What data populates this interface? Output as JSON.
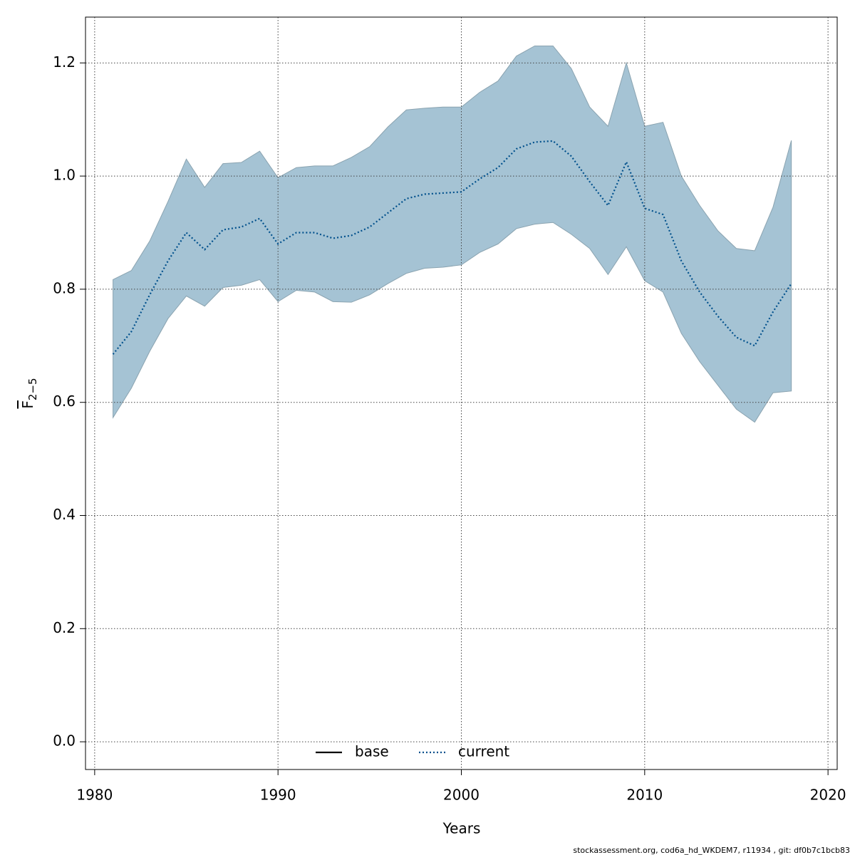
{
  "chart_data": {
    "type": "line",
    "xlabel": "Years",
    "ylabel": "F",
    "ylabel_sub": "2−5",
    "footer": "stockassessment.org, cod6a_hd_WKDEM7, r11934 , git: df0b7c1bcb83",
    "x": [
      1981,
      1982,
      1983,
      1984,
      1985,
      1986,
      1987,
      1988,
      1989,
      1990,
      1991,
      1992,
      1993,
      1994,
      1995,
      1996,
      1997,
      1998,
      1999,
      2000,
      2001,
      2002,
      2003,
      2004,
      2005,
      2006,
      2007,
      2008,
      2009,
      2010,
      2011,
      2012,
      2013,
      2014,
      2015,
      2016,
      2017,
      2018
    ],
    "series": [
      {
        "name": "current",
        "color": "#00508c",
        "dash": "dotted",
        "values": [
          0.685,
          0.725,
          0.79,
          0.85,
          0.9,
          0.87,
          0.905,
          0.91,
          0.925,
          0.88,
          0.9,
          0.9,
          0.89,
          0.895,
          0.91,
          0.935,
          0.96,
          0.968,
          0.97,
          0.972,
          0.995,
          1.015,
          1.048,
          1.06,
          1.062,
          1.035,
          0.99,
          0.948,
          1.025,
          0.943,
          0.932,
          0.85,
          0.795,
          0.752,
          0.715,
          0.7,
          0.76,
          0.81
        ]
      }
    ],
    "band": {
      "color": "#a5c3d4",
      "edge": "#8aa3b0",
      "upper": [
        0.817,
        0.833,
        0.885,
        0.955,
        1.03,
        0.98,
        1.022,
        1.024,
        1.044,
        0.997,
        1.015,
        1.018,
        1.018,
        1.033,
        1.052,
        1.087,
        1.117,
        1.12,
        1.122,
        1.122,
        1.148,
        1.168,
        1.212,
        1.23,
        1.23,
        1.19,
        1.122,
        1.088,
        1.2,
        1.088,
        1.095,
        1.0,
        0.948,
        0.903,
        0.872,
        0.868,
        0.945,
        1.063
      ],
      "lower": [
        0.573,
        0.625,
        0.69,
        0.748,
        0.788,
        0.77,
        0.803,
        0.807,
        0.817,
        0.778,
        0.798,
        0.795,
        0.778,
        0.777,
        0.79,
        0.81,
        0.828,
        0.837,
        0.839,
        0.843,
        0.865,
        0.88,
        0.907,
        0.915,
        0.918,
        0.897,
        0.872,
        0.826,
        0.875,
        0.815,
        0.795,
        0.722,
        0.672,
        0.63,
        0.588,
        0.565,
        0.617,
        0.62
      ]
    },
    "legend": [
      {
        "name": "base",
        "color": "#000000",
        "dash": "solid"
      },
      {
        "name": "current",
        "color": "#00508c",
        "dash": "dotted"
      }
    ],
    "legend_position": "bottom",
    "grid": true,
    "xlim": [
      1979.5,
      2020.5
    ],
    "xticks": [
      1980,
      1990,
      2000,
      2010,
      2020
    ],
    "ylim": [
      -0.049,
      1.281
    ],
    "yticks": [
      {
        "value": 0,
        "label": "0.0"
      },
      0.2,
      0.4,
      0.6,
      0.8,
      {
        "value": 1,
        "label": "1.0"
      },
      1.2
    ]
  }
}
